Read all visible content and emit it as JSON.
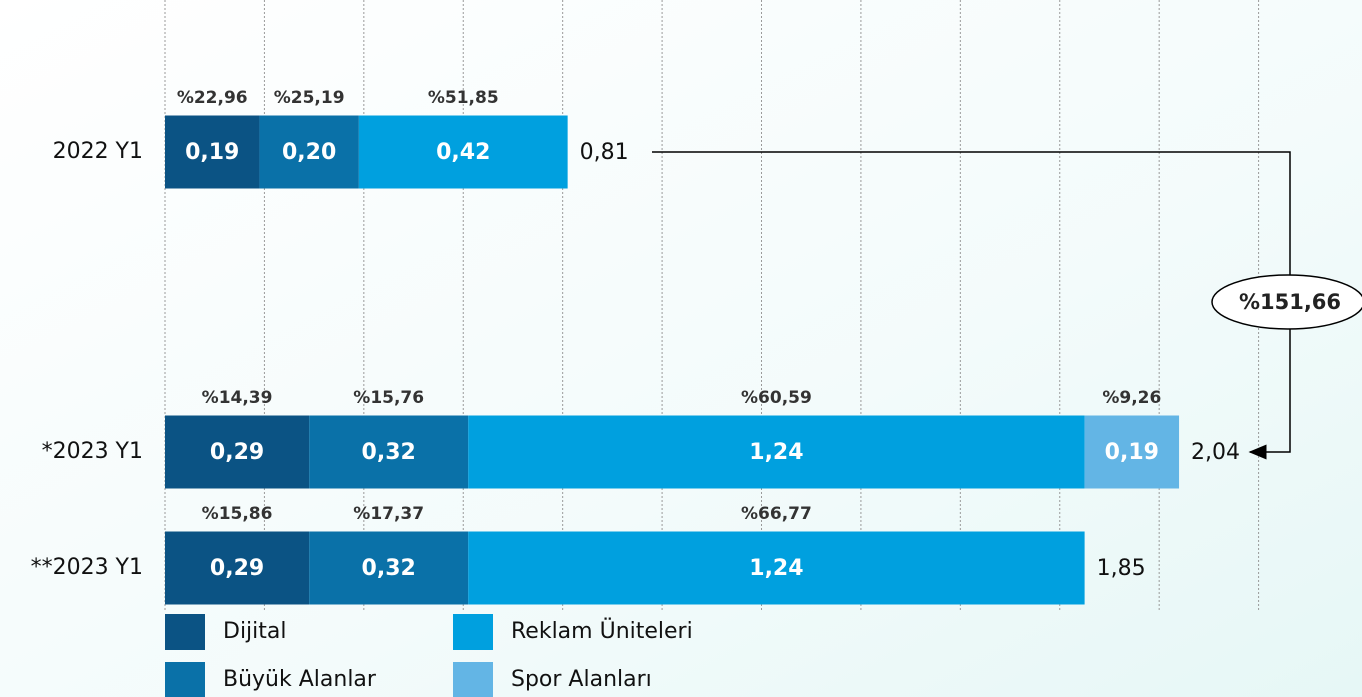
{
  "chart_data": {
    "type": "stacked-bar-horizontal",
    "categories": [
      "2022 Y1",
      "*2023 Y1",
      "**2023 Y1"
    ],
    "series": [
      {
        "name": "Dijital",
        "color": "#0b5384",
        "values": [
          0.19,
          0.29,
          0.29
        ],
        "value_labels": [
          "0,19",
          "0,29",
          "0,29"
        ],
        "shares": [
          22.96,
          14.39,
          15.86
        ],
        "share_labels": [
          "%22,96",
          "%14,39",
          "%15,86"
        ]
      },
      {
        "name": "Büyük Alanlar",
        "color": "#0a71a8",
        "values": [
          0.2,
          0.32,
          0.32
        ],
        "value_labels": [
          "0,20",
          "0,32",
          "0,32"
        ],
        "shares": [
          25.19,
          15.76,
          17.37
        ],
        "share_labels": [
          "%25,19",
          "%15,76",
          "%17,37"
        ]
      },
      {
        "name": "Reklam Üniteleri",
        "color": "#00a0df",
        "values": [
          0.42,
          1.24,
          1.24
        ],
        "value_labels": [
          "0,42",
          "1,24",
          "1,24"
        ],
        "shares": [
          51.85,
          60.59,
          66.77
        ],
        "share_labels": [
          "%51,85",
          "%60,59",
          "%66,77"
        ]
      },
      {
        "name": "Spor Alanları",
        "color": "#63b5e5",
        "values": [
          null,
          0.19,
          null
        ],
        "value_labels": [
          null,
          "0,19",
          null
        ],
        "shares": [
          null,
          9.26,
          null
        ],
        "share_labels": [
          null,
          "%9,26",
          null
        ]
      }
    ],
    "totals": [
      0.81,
      2.04,
      1.85
    ],
    "total_labels": [
      "0,81",
      "2,04",
      "1,85"
    ],
    "growth": {
      "value": 151.66,
      "label": "%151,66"
    },
    "xlim": [
      0,
      2.4
    ],
    "xticks": [
      0,
      0.2,
      0.4,
      0.6,
      0.8,
      1.0,
      1.2,
      1.4,
      1.6,
      1.8,
      2.0,
      2.2
    ],
    "grid": true
  }
}
